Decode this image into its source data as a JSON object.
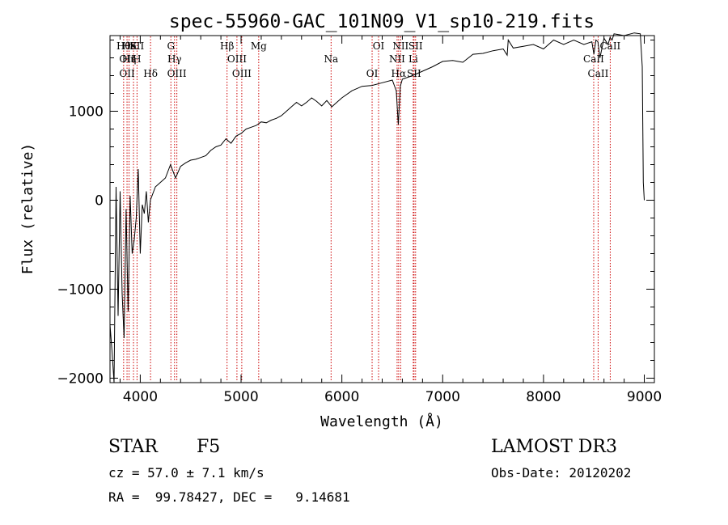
{
  "chart_data": {
    "type": "line",
    "title": "spec-55960-GAC_101N09_V1_sp10-219.fits",
    "xlabel": "Wavelength (Å)",
    "ylabel": "Flux (relative)",
    "xlim": [
      3700,
      9100
    ],
    "ylim": [
      -2050,
      1850
    ],
    "xticks": [
      4000,
      5000,
      6000,
      7000,
      8000,
      9000
    ],
    "yticks": [
      -2000,
      -1000,
      0,
      1000
    ],
    "series": [
      {
        "name": "spectrum",
        "x": [
          3700,
          3720,
          3740,
          3760,
          3780,
          3800,
          3820,
          3840,
          3860,
          3880,
          3900,
          3920,
          3940,
          3960,
          3980,
          4000,
          4020,
          4040,
          4060,
          4080,
          4100,
          4150,
          4200,
          4250,
          4300,
          4350,
          4400,
          4450,
          4500,
          4550,
          4600,
          4650,
          4700,
          4750,
          4800,
          4850,
          4900,
          4950,
          5000,
          5050,
          5100,
          5150,
          5200,
          5250,
          5300,
          5350,
          5400,
          5450,
          5500,
          5550,
          5600,
          5650,
          5700,
          5750,
          5800,
          5850,
          5900,
          5950,
          6000,
          6100,
          6200,
          6300,
          6400,
          6500,
          6540,
          6560,
          6580,
          6600,
          6700,
          6800,
          6900,
          7000,
          7100,
          7200,
          7300,
          7400,
          7500,
          7600,
          7640,
          7650,
          7700,
          7800,
          7900,
          8000,
          8100,
          8200,
          8300,
          8400,
          8480,
          8500,
          8520,
          8540,
          8560,
          8600,
          8640,
          8660,
          8680,
          8700,
          8800,
          8900,
          8960,
          8980,
          8990,
          9000
        ],
        "y": [
          -1400,
          -1700,
          -2050,
          150,
          -1300,
          100,
          -1050,
          -1550,
          -100,
          -1250,
          50,
          -600,
          -450,
          -200,
          350,
          -600,
          -50,
          -150,
          100,
          -250,
          0,
          150,
          200,
          250,
          400,
          250,
          380,
          420,
          450,
          460,
          480,
          500,
          560,
          600,
          620,
          690,
          640,
          720,
          750,
          800,
          820,
          840,
          880,
          870,
          900,
          920,
          950,
          1000,
          1050,
          1100,
          1060,
          1100,
          1150,
          1110,
          1060,
          1120,
          1050,
          1100,
          1150,
          1230,
          1280,
          1290,
          1320,
          1350,
          1230,
          850,
          1280,
          1360,
          1400,
          1450,
          1500,
          1560,
          1570,
          1550,
          1640,
          1650,
          1680,
          1700,
          1630,
          1800,
          1710,
          1730,
          1750,
          1700,
          1800,
          1750,
          1800,
          1750,
          1780,
          1640,
          1800,
          1780,
          1600,
          1820,
          1750,
          1830,
          1800,
          1870,
          1850,
          1880,
          1870,
          1500,
          200,
          0
        ]
      }
    ],
    "lines": [
      {
        "x": 3835,
        "labels": [
          "Hθ"
        ]
      },
      {
        "x": 3869,
        "labels": [
          "OII",
          "OII"
        ]
      },
      {
        "x": 3889,
        "labels": [
          "He",
          "Hη"
        ]
      },
      {
        "x": 3933,
        "labels": [
          "K"
        ]
      },
      {
        "x": 3968,
        "labels": [
          "SII",
          "H"
        ]
      },
      {
        "x": 4102,
        "labels": [
          "Hδ"
        ]
      },
      {
        "x": 4304,
        "labels": [
          "G"
        ]
      },
      {
        "x": 4340,
        "labels": [
          "Hγ"
        ]
      },
      {
        "x": 4363,
        "labels": [
          "OIII"
        ]
      },
      {
        "x": 4861,
        "labels": [
          "Hβ"
        ]
      },
      {
        "x": 4959,
        "labels": [
          "OIII"
        ]
      },
      {
        "x": 5007,
        "labels": [
          "OIII"
        ]
      },
      {
        "x": 5175,
        "labels": [
          "Mg"
        ]
      },
      {
        "x": 5893,
        "labels": [
          "Na"
        ]
      },
      {
        "x": 6300,
        "labels": [
          "OI"
        ]
      },
      {
        "x": 6364,
        "labels": [
          "OI"
        ]
      },
      {
        "x": 6548,
        "labels": [
          "NII"
        ]
      },
      {
        "x": 6563,
        "labels": [
          "Hα"
        ]
      },
      {
        "x": 6583,
        "labels": [
          "NII"
        ]
      },
      {
        "x": 6708,
        "labels": [
          "Li"
        ]
      },
      {
        "x": 6716,
        "labels": [
          "SII"
        ]
      },
      {
        "x": 6731,
        "labels": [
          "SII"
        ]
      },
      {
        "x": 8498,
        "labels": [
          "CaII"
        ]
      },
      {
        "x": 8542,
        "labels": [
          "CaII"
        ]
      },
      {
        "x": 8662,
        "labels": [
          "CaII"
        ]
      }
    ]
  },
  "info": {
    "object_class": "STAR",
    "subclass": "F5",
    "survey": "LAMOST DR3",
    "cz": "cz = 57.0 ± 7.1 km/s",
    "obs_date": "Obs-Date: 20120202",
    "coords": "RA =  99.78427, DEC =   9.14681"
  },
  "colors": {
    "spectrum": "#000000",
    "line_marker": "#cc0000",
    "axes": "#000000"
  }
}
